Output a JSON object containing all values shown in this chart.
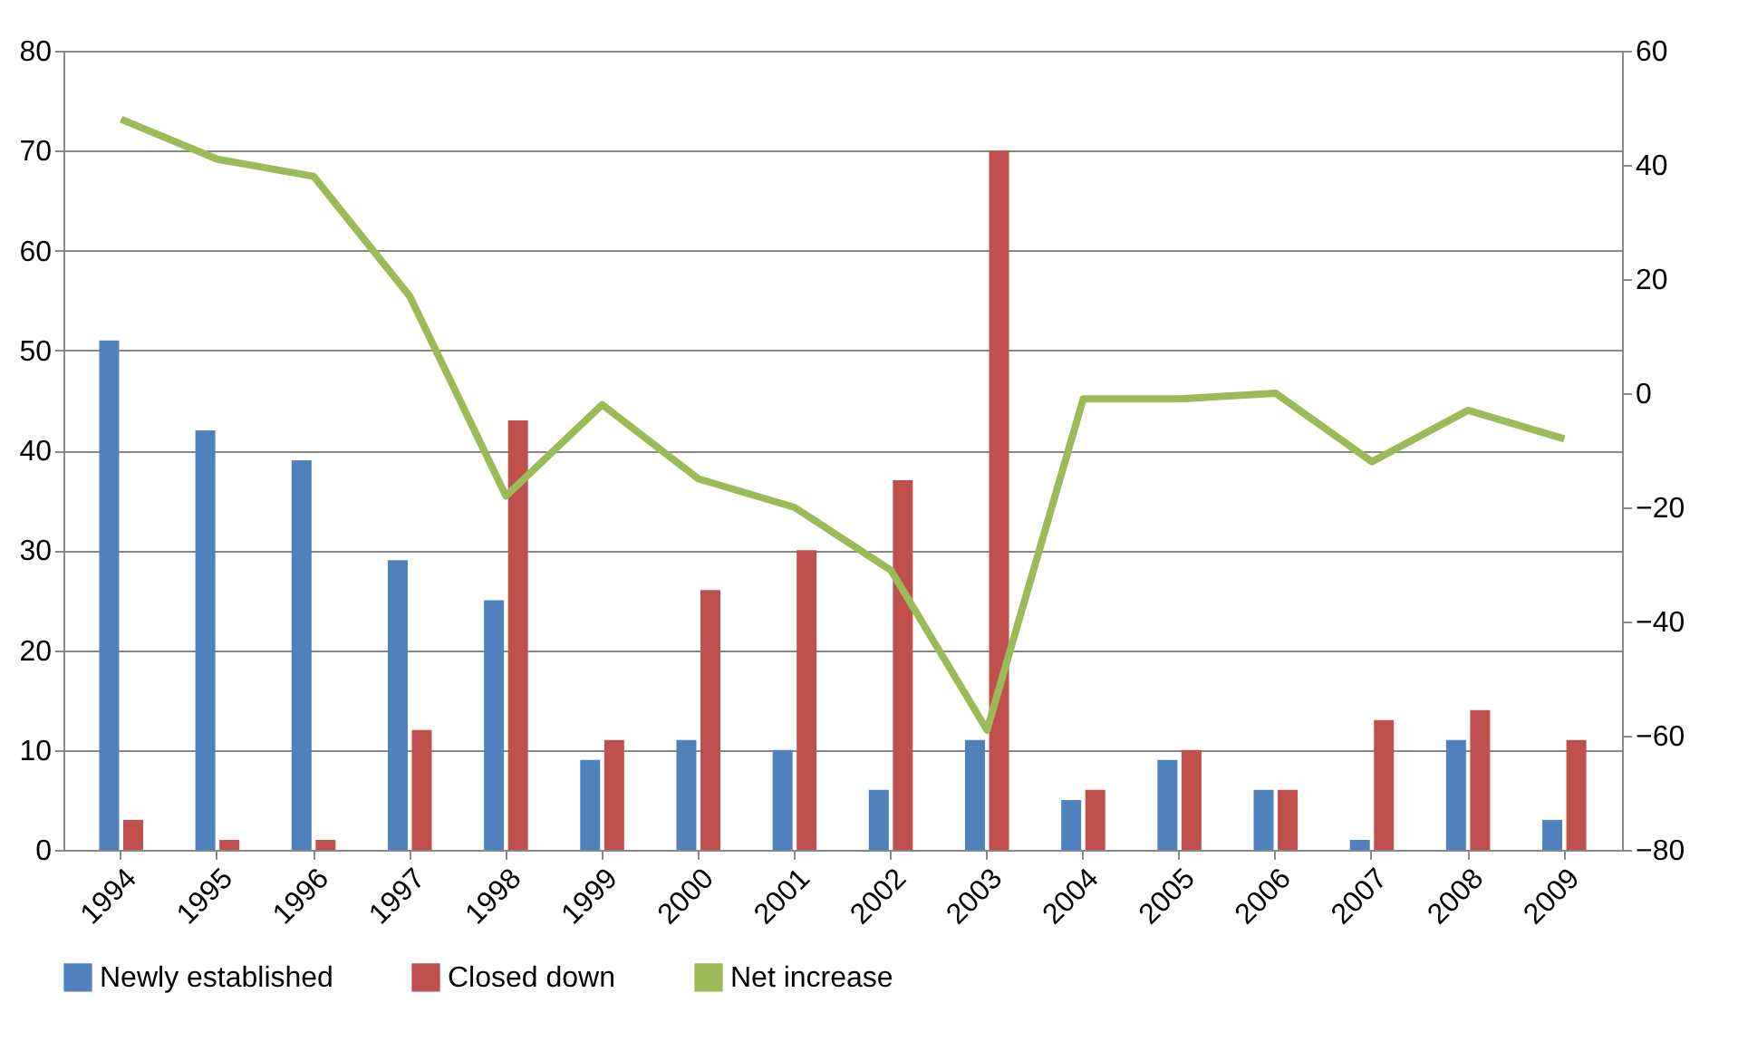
{
  "chart_data": {
    "type": "bar",
    "categories": [
      "1994",
      "1995",
      "1996",
      "1997",
      "1998",
      "1999",
      "2000",
      "2001",
      "2002",
      "2003",
      "2004",
      "2005",
      "2006",
      "2007",
      "2008",
      "2009"
    ],
    "series": [
      {
        "name": "Newly established",
        "color": "#4f81bd",
        "values": [
          51,
          42,
          39,
          29,
          25,
          9,
          11,
          10,
          6,
          11,
          5,
          9,
          6,
          1,
          11,
          3
        ]
      },
      {
        "name": "Closed down",
        "color": "#c0504d",
        "values": [
          3,
          1,
          1,
          12,
          43,
          11,
          26,
          30,
          37,
          70,
          6,
          10,
          6,
          13,
          14,
          11
        ]
      },
      {
        "name": "Net increase",
        "type": "line",
        "axis": "y2",
        "color": "#9bbb59",
        "values": [
          48,
          41,
          38,
          17,
          -18,
          -2,
          -15,
          -20,
          -31,
          -59,
          -1,
          -1,
          0,
          -12,
          -3,
          -8
        ]
      }
    ],
    "ylim": [
      0,
      80
    ],
    "yticks": [
      0,
      10,
      20,
      30,
      40,
      50,
      60,
      70,
      80
    ],
    "y2lim": [
      -80,
      60
    ],
    "y2ticks": [
      -80,
      -60,
      -40,
      -20,
      0,
      20,
      40,
      60
    ],
    "grid": "y",
    "legend": "bottom",
    "marker": "none",
    "line_style": "solid"
  }
}
